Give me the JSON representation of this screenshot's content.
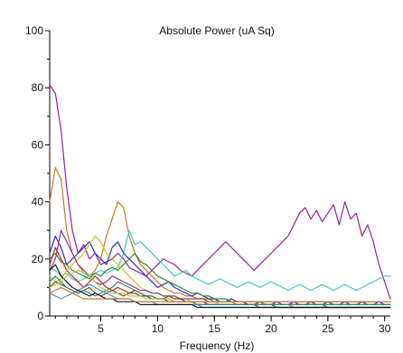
{
  "chart_data": {
    "type": "line",
    "title": "Absolute Power (uA Sq)",
    "xlabel": "Frequency (Hz)",
    "ylabel": "",
    "xlim": [
      0.5,
      30.5
    ],
    "ylim": [
      0,
      100
    ],
    "x_ticks": [
      5,
      10,
      15,
      20,
      25,
      30
    ],
    "x_minor_ticks": [
      1,
      2,
      3,
      4,
      5,
      6,
      7,
      8,
      9,
      10,
      11,
      12,
      13,
      14,
      15,
      16,
      17,
      18,
      19,
      20,
      21,
      22,
      23,
      24,
      25,
      26,
      27,
      28,
      29,
      30
    ],
    "y_ticks": [
      0,
      20,
      40,
      60,
      80,
      100
    ],
    "y_minor_ticks": [
      10,
      30,
      50,
      70,
      90
    ],
    "grid": false,
    "x": [
      0.5,
      1,
      1.5,
      2,
      2.5,
      3,
      3.5,
      4,
      4.5,
      5,
      5.5,
      6,
      6.5,
      7,
      7.5,
      8,
      8.5,
      9,
      9.5,
      10,
      10.5,
      11,
      11.5,
      12,
      12.5,
      13,
      13.5,
      14,
      14.5,
      15,
      15.5,
      16,
      16.5,
      17,
      17.5,
      18,
      18.5,
      19,
      19.5,
      20,
      20.5,
      21,
      21.5,
      22,
      22.5,
      23,
      23.5,
      24,
      24.5,
      25,
      25.5,
      26,
      26.5,
      27,
      27.5,
      28,
      28.5,
      29,
      29.5,
      30,
      30.5
    ],
    "series": [
      {
        "color": "#9b1f9b",
        "values": [
          81,
          78,
          65,
          45,
          30,
          22,
          25,
          20,
          22,
          18,
          19,
          20,
          22,
          20,
          17,
          16,
          15,
          14,
          16,
          18,
          20,
          19,
          18,
          16,
          15,
          14,
          16,
          18,
          20,
          22,
          24,
          26,
          24,
          22,
          20,
          18,
          16,
          18,
          20,
          22,
          24,
          26,
          28,
          32,
          36,
          38,
          34,
          37,
          33,
          36,
          39,
          32,
          40,
          34,
          36,
          28,
          32,
          26,
          18,
          12,
          6
        ]
      },
      {
        "color": "#c97a22",
        "values": [
          40,
          52,
          48,
          30,
          22,
          18,
          15,
          14,
          16,
          20,
          28,
          34,
          40,
          38,
          28,
          22,
          18,
          16,
          14,
          12,
          10,
          9,
          8,
          8,
          7,
          7,
          6,
          6,
          6,
          5,
          5,
          5,
          5,
          4,
          4,
          4,
          4,
          4,
          4,
          4,
          4,
          4,
          4,
          3,
          3,
          3,
          3,
          3,
          3,
          3,
          3,
          3,
          3,
          3,
          3,
          3,
          3,
          3,
          3,
          3,
          3
        ]
      },
      {
        "color": "#3fc8c0",
        "values": [
          17,
          16,
          14,
          15,
          13,
          12,
          13,
          14,
          15,
          16,
          15,
          16,
          17,
          22,
          30,
          25,
          26,
          24,
          22,
          20,
          18,
          16,
          14,
          15,
          16,
          14,
          13,
          12,
          11,
          12,
          13,
          12,
          11,
          10,
          11,
          12,
          11,
          10,
          11,
          12,
          11,
          10,
          9,
          10,
          11,
          10,
          9,
          10,
          11,
          10,
          9,
          10,
          11,
          10,
          9,
          10,
          11,
          12,
          13,
          14,
          14
        ]
      },
      {
        "color": "#2b2ad2",
        "values": [
          22,
          28,
          24,
          18,
          20,
          22,
          24,
          26,
          22,
          20,
          18,
          24,
          26,
          22,
          20,
          18,
          16,
          14,
          12,
          10,
          11,
          12,
          10,
          9,
          8,
          7,
          8,
          7,
          6,
          6,
          5,
          5,
          6,
          5,
          5,
          4,
          4,
          5,
          4,
          4,
          5,
          4,
          4,
          5,
          4,
          4,
          5,
          4,
          4,
          5,
          4,
          4,
          5,
          4,
          4,
          5,
          4,
          4,
          5,
          4,
          4
        ]
      },
      {
        "color": "#2e8b2e",
        "values": [
          20,
          22,
          19,
          18,
          16,
          15,
          14,
          13,
          15,
          14,
          16,
          17,
          16,
          18,
          20,
          22,
          19,
          18,
          16,
          14,
          13,
          12,
          11,
          10,
          9,
          8,
          8,
          7,
          7,
          6,
          6,
          6,
          5,
          5,
          5,
          5,
          5,
          5,
          4,
          4,
          4,
          4,
          4,
          4,
          4,
          4,
          4,
          4,
          4,
          3,
          3,
          3,
          3,
          3,
          3,
          3,
          3,
          3,
          3,
          3,
          3
        ]
      },
      {
        "color": "#cc2020",
        "values": [
          18,
          24,
          20,
          16,
          14,
          12,
          10,
          12,
          14,
          12,
          10,
          9,
          10,
          9,
          8,
          8,
          7,
          7,
          6,
          6,
          6,
          5,
          5,
          5,
          5,
          5,
          4,
          4,
          4,
          4,
          4,
          4,
          4,
          4,
          4,
          4,
          4,
          3,
          3,
          3,
          3,
          3,
          3,
          3,
          3,
          3,
          3,
          3,
          3,
          3,
          3,
          3,
          3,
          3,
          3,
          3,
          3,
          3,
          3,
          3,
          3
        ]
      },
      {
        "color": "#d4c020",
        "values": [
          14,
          12,
          13,
          16,
          18,
          20,
          22,
          25,
          28,
          26,
          22,
          20,
          18,
          16,
          14,
          12,
          10,
          9,
          8,
          8,
          7,
          7,
          6,
          6,
          6,
          5,
          5,
          5,
          5,
          5,
          4,
          4,
          4,
          4,
          4,
          4,
          4,
          4,
          4,
          4,
          4,
          4,
          4,
          4,
          4,
          4,
          4,
          4,
          4,
          4,
          4,
          4,
          4,
          4,
          4,
          4,
          4,
          4,
          4,
          4,
          4
        ]
      },
      {
        "color": "#8a3a8a",
        "values": [
          16,
          20,
          30,
          26,
          22,
          18,
          16,
          14,
          12,
          11,
          12,
          14,
          13,
          12,
          11,
          10,
          9,
          9,
          8,
          8,
          7,
          7,
          7,
          6,
          6,
          6,
          6,
          6,
          5,
          5,
          5,
          5,
          5,
          5,
          5,
          5,
          5,
          5,
          5,
          5,
          5,
          5,
          5,
          5,
          5,
          5,
          5,
          5,
          5,
          5,
          5,
          5,
          5,
          5,
          5,
          5,
          5,
          5,
          5,
          5,
          5
        ]
      },
      {
        "color": "#7a4a1a",
        "values": [
          10,
          12,
          11,
          10,
          9,
          8,
          9,
          10,
          8,
          7,
          8,
          9,
          8,
          7,
          8,
          9,
          8,
          7,
          7,
          6,
          6,
          7,
          6,
          6,
          5,
          5,
          5,
          5,
          4,
          4,
          4,
          4,
          4,
          4,
          4,
          4,
          4,
          4,
          4,
          4,
          3,
          3,
          3,
          3,
          3,
          3,
          3,
          3,
          3,
          3,
          3,
          3,
          3,
          3,
          3,
          3,
          3,
          3,
          3,
          3,
          3
        ]
      },
      {
        "color": "#2a8a7a",
        "values": [
          12,
          14,
          12,
          10,
          9,
          8,
          9,
          8,
          7,
          8,
          9,
          10,
          12,
          11,
          10,
          9,
          8,
          7,
          7,
          6,
          6,
          6,
          5,
          5,
          5,
          5,
          4,
          4,
          4,
          4,
          4,
          4,
          4,
          4,
          4,
          4,
          4,
          4,
          4,
          4,
          4,
          4,
          4,
          4,
          4,
          4,
          4,
          4,
          4,
          4,
          4,
          4,
          4,
          4,
          4,
          4,
          4,
          4,
          4,
          4,
          4
        ]
      },
      {
        "color": "#4a8fd0",
        "values": [
          8,
          7,
          6,
          7,
          8,
          9,
          10,
          11,
          10,
          9,
          8,
          7,
          6,
          6,
          6,
          5,
          5,
          5,
          5,
          4,
          4,
          4,
          4,
          4,
          4,
          4,
          4,
          3,
          3,
          3,
          3,
          3,
          3,
          3,
          3,
          3,
          3,
          3,
          3,
          3,
          3,
          3,
          3,
          3,
          3,
          3,
          3,
          3,
          3,
          3,
          3,
          3,
          3,
          3,
          3,
          3,
          3,
          3,
          3,
          3,
          3
        ]
      },
      {
        "color": "#1a1a1a",
        "values": [
          16,
          18,
          14,
          12,
          10,
          9,
          8,
          7,
          8,
          7,
          6,
          6,
          5,
          5,
          5,
          5,
          4,
          4,
          4,
          4,
          4,
          4,
          4,
          4,
          4,
          4,
          3,
          3,
          3,
          3,
          3,
          3,
          3,
          3,
          3,
          3,
          3,
          3,
          3,
          3,
          3,
          3,
          3,
          3,
          3,
          3,
          3,
          3,
          3,
          3,
          3,
          3,
          3,
          3,
          3,
          3,
          3,
          3,
          3,
          3,
          3
        ]
      },
      {
        "color": "#a0d040",
        "values": [
          10,
          11,
          12,
          14,
          15,
          16,
          15,
          14,
          12,
          10,
          9,
          8,
          8,
          8,
          7,
          7,
          7,
          6,
          6,
          6,
          6,
          6,
          5,
          5,
          5,
          5,
          5,
          5,
          5,
          5,
          5,
          5,
          5,
          5,
          5,
          5,
          5,
          5,
          5,
          5,
          5,
          5,
          5,
          5,
          5,
          5,
          5,
          5,
          5,
          5,
          5,
          5,
          5,
          5,
          5,
          5,
          5,
          5,
          5,
          5,
          5
        ]
      },
      {
        "color": "#d07030",
        "values": [
          8,
          9,
          10,
          9,
          8,
          7,
          6,
          6,
          6,
          6,
          6,
          6,
          6,
          6,
          6,
          5,
          5,
          5,
          5,
          5,
          5,
          5,
          5,
          5,
          5,
          5,
          5,
          5,
          5,
          5,
          5,
          5,
          5,
          5,
          5,
          5,
          5,
          5,
          5,
          5,
          5,
          5,
          5,
          5,
          5,
          5,
          5,
          5,
          5,
          5,
          5,
          5,
          5,
          5,
          5,
          5,
          5,
          5,
          5,
          5,
          5
        ]
      }
    ]
  }
}
